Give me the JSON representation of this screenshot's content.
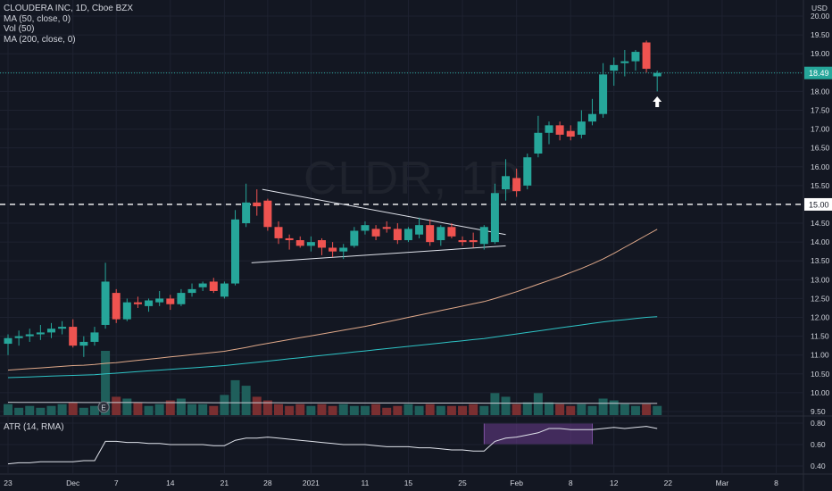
{
  "legend": {
    "symbol": "CLOUDERA INC, 1D, Cboe BZX",
    "ma50": "MA (50, close, 0)",
    "vol": "Vol (50)",
    "ma200": "MA (200, close, 0)"
  },
  "watermark": "CLDR, 1D",
  "atr_label": "ATR (14, RMA)",
  "currency": "USD",
  "last_price_label": "18.49",
  "level_label": "15.00",
  "colors": {
    "background": "#131722",
    "up": "#26a69a",
    "down": "#ef5350",
    "up_vol": "#1f5f5b",
    "down_vol": "#7a2f31",
    "ma50": "#e0a98a",
    "ma200": "#2ec4c6",
    "grid": "#1e2230",
    "axis_text": "#d1d4dc",
    "trendline": "#e0e3eb",
    "atr_line": "#e0e3eb",
    "atr_highlight": "#6a3c8c"
  },
  "chart_data": {
    "type": "candlestick",
    "y_axis_ticks": [
      "20.00",
      "19.50",
      "19.00",
      "18.50",
      "18.00",
      "17.50",
      "17.00",
      "16.50",
      "16.00",
      "15.50",
      "15.00",
      "14.50",
      "14.00",
      "13.50",
      "13.00",
      "12.50",
      "12.00",
      "11.50",
      "11.00",
      "10.50",
      "10.00",
      "9.50"
    ],
    "ylim": [
      9.5,
      20.0
    ],
    "x_axis_labels": [
      {
        "label": "23",
        "bar": 0
      },
      {
        "label": "Dec",
        "bar": 6
      },
      {
        "label": "7",
        "bar": 10
      },
      {
        "label": "14",
        "bar": 15
      },
      {
        "label": "21",
        "bar": 20
      },
      {
        "label": "28",
        "bar": 24
      },
      {
        "label": "2021",
        "bar": 28
      },
      {
        "label": "11",
        "bar": 33
      },
      {
        "label": "15",
        "bar": 37
      },
      {
        "label": "25",
        "bar": 42
      },
      {
        "label": "Feb",
        "bar": 47
      },
      {
        "label": "8",
        "bar": 52
      },
      {
        "label": "12",
        "bar": 56
      },
      {
        "label": "22",
        "bar": 61
      },
      {
        "label": "Mar",
        "bar": 66
      },
      {
        "label": "8",
        "bar": 71
      }
    ],
    "candles": [
      {
        "o": 11.3,
        "h": 11.55,
        "l": 11.0,
        "c": 11.45
      },
      {
        "o": 11.45,
        "h": 11.65,
        "l": 11.25,
        "c": 11.5
      },
      {
        "o": 11.5,
        "h": 11.7,
        "l": 11.35,
        "c": 11.55
      },
      {
        "o": 11.55,
        "h": 11.8,
        "l": 11.4,
        "c": 11.6
      },
      {
        "o": 11.6,
        "h": 11.85,
        "l": 11.45,
        "c": 11.7
      },
      {
        "o": 11.7,
        "h": 11.9,
        "l": 11.55,
        "c": 11.75
      },
      {
        "o": 11.75,
        "h": 11.95,
        "l": 11.2,
        "c": 11.25
      },
      {
        "o": 11.25,
        "h": 11.5,
        "l": 10.95,
        "c": 11.35
      },
      {
        "o": 11.35,
        "h": 11.75,
        "l": 11.25,
        "c": 11.6
      },
      {
        "o": 11.8,
        "h": 13.45,
        "l": 11.7,
        "c": 12.95
      },
      {
        "o": 12.65,
        "h": 12.75,
        "l": 11.85,
        "c": 11.95
      },
      {
        "o": 11.95,
        "h": 12.5,
        "l": 11.9,
        "c": 12.4
      },
      {
        "o": 12.4,
        "h": 12.55,
        "l": 12.25,
        "c": 12.35
      },
      {
        "o": 12.3,
        "h": 12.5,
        "l": 12.15,
        "c": 12.45
      },
      {
        "o": 12.4,
        "h": 12.7,
        "l": 12.3,
        "c": 12.5
      },
      {
        "o": 12.5,
        "h": 12.6,
        "l": 12.2,
        "c": 12.35
      },
      {
        "o": 12.35,
        "h": 12.75,
        "l": 12.3,
        "c": 12.65
      },
      {
        "o": 12.65,
        "h": 12.9,
        "l": 12.55,
        "c": 12.75
      },
      {
        "o": 12.8,
        "h": 12.95,
        "l": 12.7,
        "c": 12.9
      },
      {
        "o": 12.95,
        "h": 13.05,
        "l": 12.65,
        "c": 12.7
      },
      {
        "o": 12.55,
        "h": 12.95,
        "l": 12.5,
        "c": 12.9
      },
      {
        "o": 12.9,
        "h": 14.85,
        "l": 12.85,
        "c": 14.6
      },
      {
        "o": 14.5,
        "h": 15.55,
        "l": 14.4,
        "c": 15.05
      },
      {
        "o": 15.05,
        "h": 15.4,
        "l": 14.7,
        "c": 14.95
      },
      {
        "o": 15.1,
        "h": 15.15,
        "l": 14.3,
        "c": 14.4
      },
      {
        "o": 14.4,
        "h": 14.55,
        "l": 13.95,
        "c": 14.1
      },
      {
        "o": 14.1,
        "h": 14.2,
        "l": 13.8,
        "c": 14.05
      },
      {
        "o": 14.05,
        "h": 14.15,
        "l": 13.85,
        "c": 13.9
      },
      {
        "o": 13.9,
        "h": 14.15,
        "l": 13.75,
        "c": 14.0
      },
      {
        "o": 14.05,
        "h": 14.1,
        "l": 13.65,
        "c": 13.85
      },
      {
        "o": 13.85,
        "h": 14.0,
        "l": 13.6,
        "c": 13.75
      },
      {
        "o": 13.75,
        "h": 13.95,
        "l": 13.55,
        "c": 13.85
      },
      {
        "o": 13.9,
        "h": 14.4,
        "l": 13.85,
        "c": 14.3
      },
      {
        "o": 14.3,
        "h": 14.55,
        "l": 14.2,
        "c": 14.45
      },
      {
        "o": 14.35,
        "h": 14.45,
        "l": 14.05,
        "c": 14.15
      },
      {
        "o": 14.4,
        "h": 14.55,
        "l": 14.25,
        "c": 14.35
      },
      {
        "o": 14.35,
        "h": 14.5,
        "l": 13.95,
        "c": 14.05
      },
      {
        "o": 14.05,
        "h": 14.4,
        "l": 14.0,
        "c": 14.35
      },
      {
        "o": 14.2,
        "h": 14.65,
        "l": 14.1,
        "c": 14.45
      },
      {
        "o": 14.45,
        "h": 14.6,
        "l": 13.9,
        "c": 14.0
      },
      {
        "o": 14.05,
        "h": 14.45,
        "l": 13.9,
        "c": 14.4
      },
      {
        "o": 14.4,
        "h": 14.5,
        "l": 14.1,
        "c": 14.15
      },
      {
        "o": 14.05,
        "h": 14.15,
        "l": 13.9,
        "c": 14.0
      },
      {
        "o": 14.05,
        "h": 14.25,
        "l": 13.85,
        "c": 14.0
      },
      {
        "o": 13.95,
        "h": 14.45,
        "l": 13.8,
        "c": 14.4
      },
      {
        "o": 14.0,
        "h": 15.55,
        "l": 13.95,
        "c": 15.3
      },
      {
        "o": 15.4,
        "h": 16.2,
        "l": 15.1,
        "c": 15.75
      },
      {
        "o": 15.7,
        "h": 15.95,
        "l": 15.2,
        "c": 15.35
      },
      {
        "o": 15.5,
        "h": 16.35,
        "l": 15.4,
        "c": 16.25
      },
      {
        "o": 16.35,
        "h": 17.35,
        "l": 16.25,
        "c": 16.9
      },
      {
        "o": 16.9,
        "h": 17.2,
        "l": 16.6,
        "c": 17.1
      },
      {
        "o": 17.1,
        "h": 17.2,
        "l": 16.7,
        "c": 16.85
      },
      {
        "o": 16.95,
        "h": 17.1,
        "l": 16.7,
        "c": 16.8
      },
      {
        "o": 16.85,
        "h": 17.5,
        "l": 16.75,
        "c": 17.2
      },
      {
        "o": 17.2,
        "h": 17.8,
        "l": 17.1,
        "c": 17.4
      },
      {
        "o": 17.4,
        "h": 18.75,
        "l": 17.3,
        "c": 18.45
      },
      {
        "o": 18.55,
        "h": 18.9,
        "l": 18.15,
        "c": 18.7
      },
      {
        "o": 18.75,
        "h": 19.1,
        "l": 18.4,
        "c": 18.8
      },
      {
        "o": 18.8,
        "h": 19.1,
        "l": 18.55,
        "c": 19.05
      },
      {
        "o": 19.3,
        "h": 19.35,
        "l": 18.5,
        "c": 18.6
      },
      {
        "o": 18.4,
        "h": 18.55,
        "l": 18.0,
        "c": 18.49
      }
    ],
    "volume": [
      0.6,
      0.4,
      0.5,
      0.4,
      0.5,
      0.6,
      0.7,
      0.4,
      0.5,
      3.5,
      1.0,
      0.9,
      0.7,
      0.5,
      0.6,
      0.8,
      0.9,
      0.6,
      0.6,
      0.5,
      1.1,
      1.9,
      1.6,
      1.0,
      0.8,
      0.6,
      0.5,
      0.6,
      0.5,
      0.6,
      0.5,
      0.6,
      0.5,
      0.5,
      0.6,
      0.4,
      0.5,
      0.6,
      0.5,
      0.6,
      0.5,
      0.5,
      0.5,
      0.6,
      0.5,
      1.2,
      1.0,
      0.6,
      0.7,
      1.2,
      0.7,
      0.6,
      0.5,
      0.6,
      0.5,
      0.9,
      0.8,
      0.6,
      0.5,
      0.6,
      0.5
    ],
    "ma50": [
      10.6,
      10.62,
      10.64,
      10.66,
      10.68,
      10.7,
      10.72,
      10.73,
      10.75,
      10.78,
      10.8,
      10.83,
      10.86,
      10.89,
      10.92,
      10.95,
      10.98,
      11.01,
      11.04,
      11.07,
      11.1,
      11.15,
      11.2,
      11.26,
      11.31,
      11.36,
      11.41,
      11.46,
      11.51,
      11.56,
      11.61,
      11.66,
      11.71,
      11.76,
      11.82,
      11.88,
      11.94,
      12.0,
      12.06,
      12.12,
      12.18,
      12.24,
      12.3,
      12.36,
      12.42,
      12.5,
      12.59,
      12.68,
      12.78,
      12.88,
      12.98,
      13.08,
      13.19,
      13.3,
      13.42,
      13.55,
      13.7,
      13.86,
      14.02,
      14.18,
      14.34
    ],
    "ma200": [
      10.4,
      10.41,
      10.42,
      10.43,
      10.44,
      10.45,
      10.46,
      10.47,
      10.48,
      10.5,
      10.52,
      10.54,
      10.56,
      10.58,
      10.6,
      10.62,
      10.64,
      10.66,
      10.68,
      10.7,
      10.72,
      10.75,
      10.78,
      10.81,
      10.84,
      10.87,
      10.9,
      10.93,
      10.96,
      10.99,
      11.02,
      11.05,
      11.08,
      11.11,
      11.14,
      11.17,
      11.2,
      11.23,
      11.26,
      11.29,
      11.32,
      11.35,
      11.38,
      11.41,
      11.44,
      11.48,
      11.52,
      11.56,
      11.6,
      11.64,
      11.68,
      11.72,
      11.76,
      11.8,
      11.84,
      11.88,
      11.91,
      11.94,
      11.97,
      12.0,
      12.02
    ],
    "triangle_upper": {
      "x1": 23.5,
      "y1": 15.4,
      "x2": 46,
      "y2": 14.2
    },
    "triangle_lower": {
      "x1": 22.5,
      "y1": 13.45,
      "x2": 46,
      "y2": 13.9
    },
    "level_line": 15.0,
    "atr": {
      "y_axis_ticks": [
        "0.80",
        "0.60",
        "0.40"
      ],
      "ylim": [
        0.35,
        0.85
      ],
      "values": [
        0.42,
        0.43,
        0.43,
        0.44,
        0.44,
        0.44,
        0.44,
        0.45,
        0.45,
        0.63,
        0.63,
        0.62,
        0.62,
        0.61,
        0.61,
        0.6,
        0.6,
        0.6,
        0.6,
        0.59,
        0.59,
        0.64,
        0.66,
        0.66,
        0.67,
        0.66,
        0.65,
        0.64,
        0.63,
        0.62,
        0.61,
        0.6,
        0.6,
        0.6,
        0.59,
        0.58,
        0.58,
        0.58,
        0.57,
        0.57,
        0.56,
        0.55,
        0.55,
        0.54,
        0.54,
        0.63,
        0.66,
        0.67,
        0.69,
        0.71,
        0.75,
        0.75,
        0.74,
        0.74,
        0.74,
        0.75,
        0.76,
        0.75,
        0.76,
        0.77,
        0.75
      ],
      "highlight": {
        "from_bar": 44,
        "to_bar": 54,
        "y_low": 0.6,
        "y_high": 0.8
      }
    }
  }
}
